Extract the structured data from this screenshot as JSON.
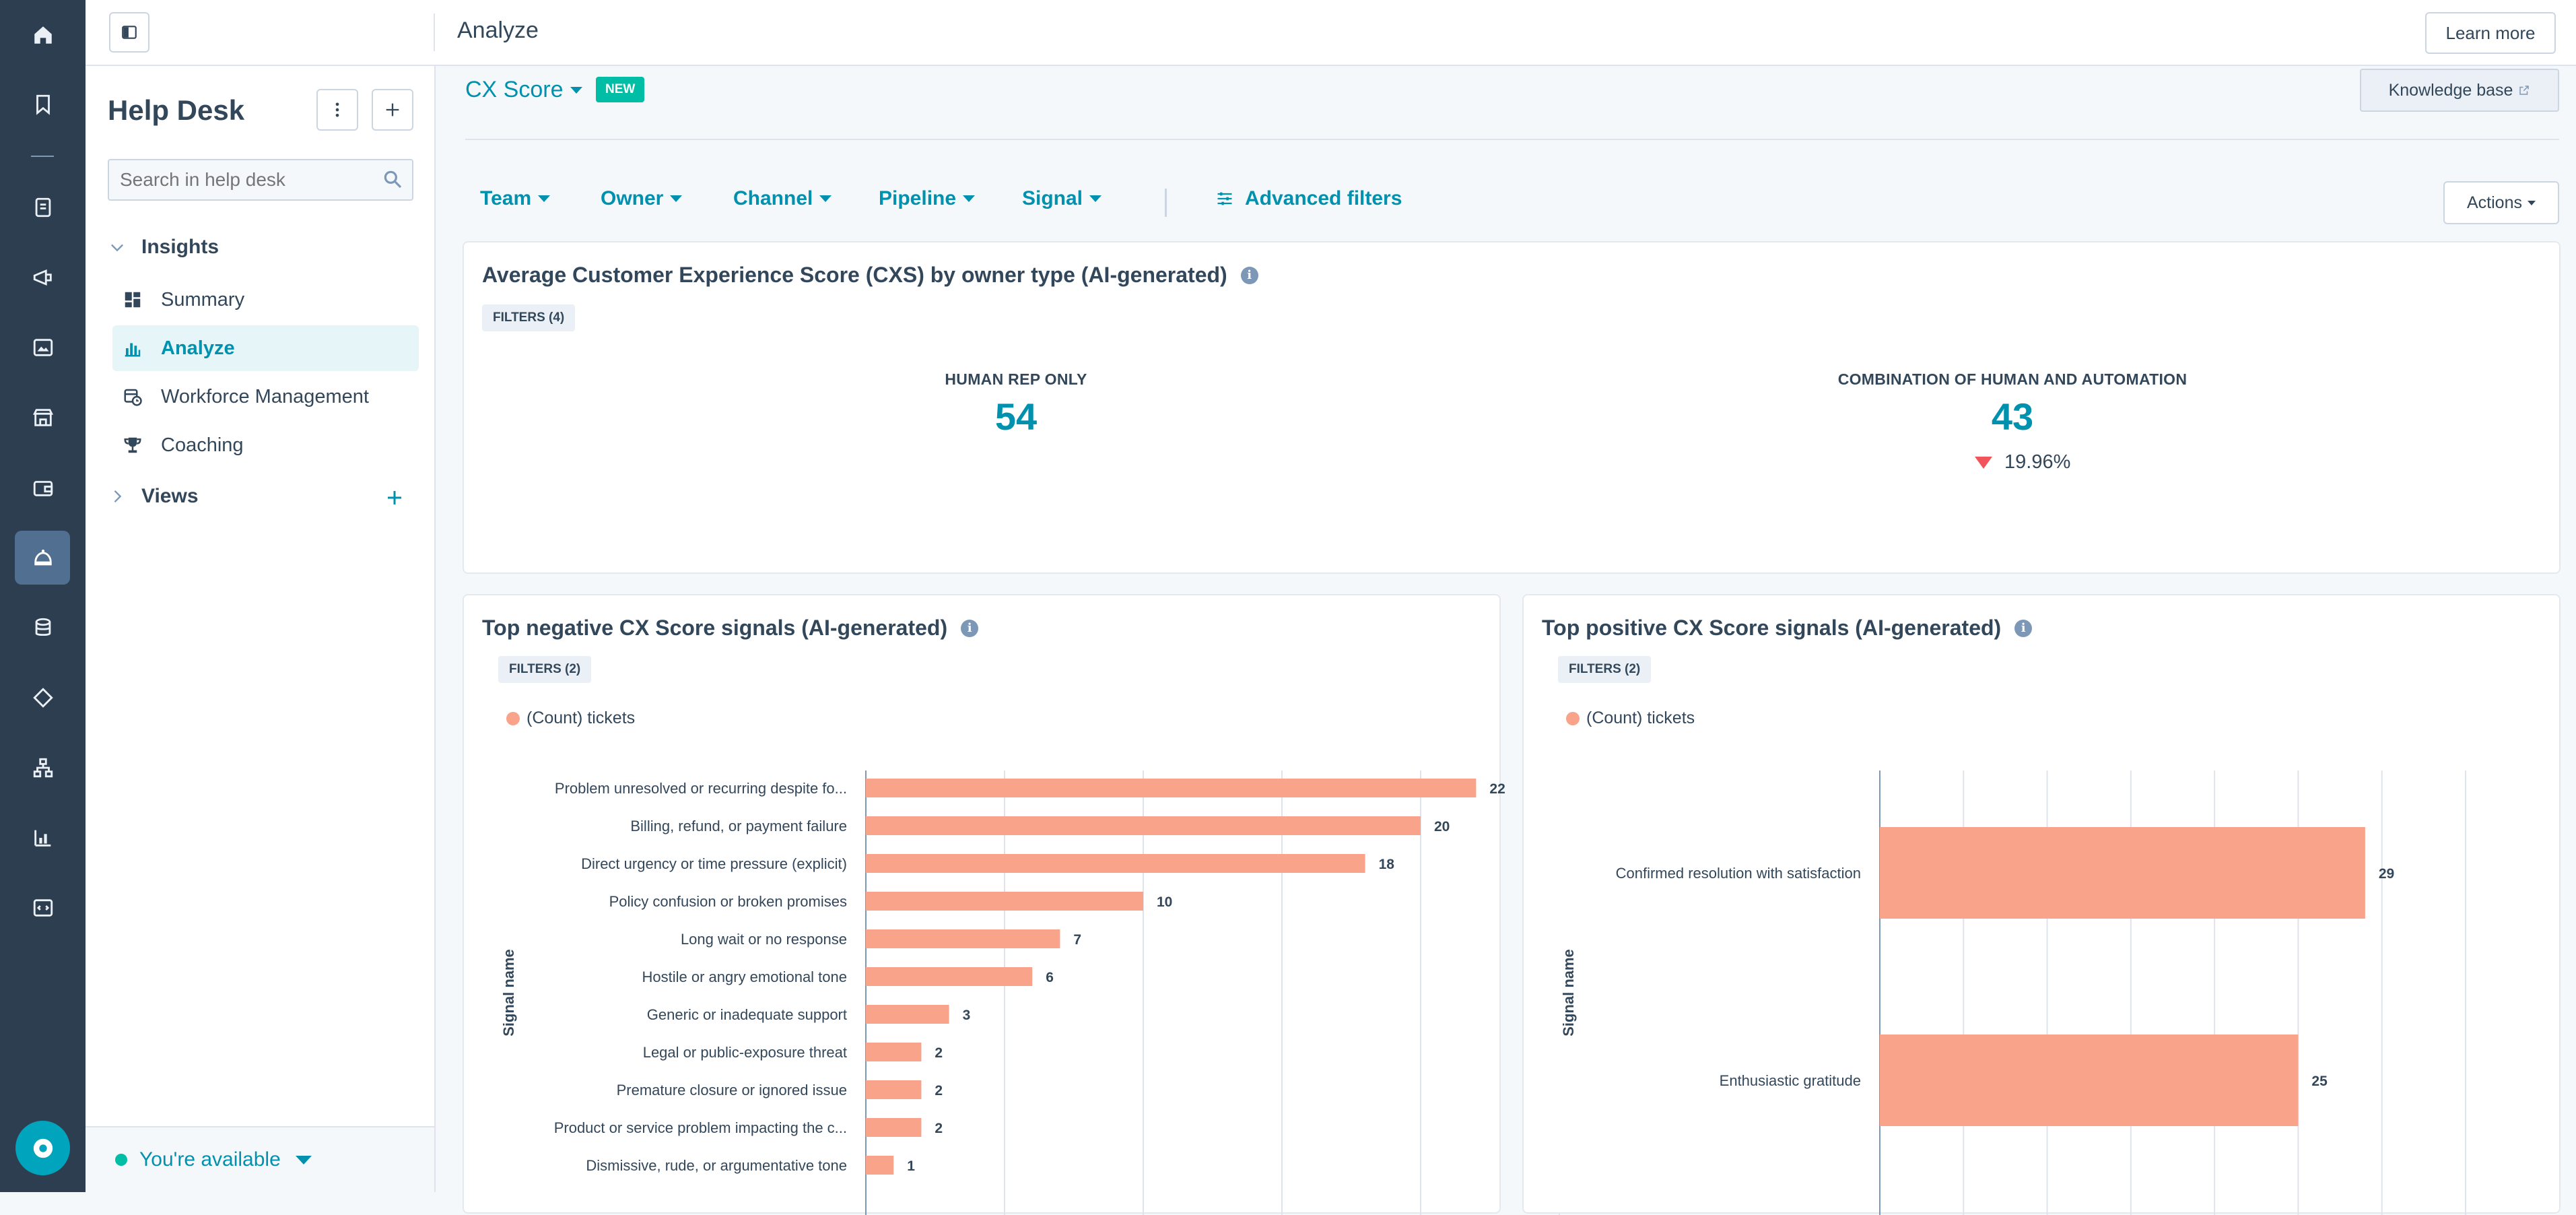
{
  "colors": {
    "rail_bg": "#2d3e50",
    "accent": "#0091ae",
    "bar": "#f8a38a",
    "negative": "#f2545b",
    "available": "#00bda5"
  },
  "rail": {
    "icons": [
      "home-icon",
      "bookmark-icon",
      "contacts-icon",
      "marketing-megaphone-icon",
      "content-icon",
      "commerce-icon",
      "payments-icon",
      "service-helpdesk-icon",
      "data-icon",
      "automation-icon",
      "workflows-icon",
      "reporting-icon",
      "development-icon"
    ],
    "help_icon": "help-icon"
  },
  "topbar": {
    "title": "Analyze",
    "learn_more": "Learn more"
  },
  "sidepanel": {
    "title": "Help Desk",
    "search_placeholder": "Search in help desk",
    "insights_label": "Insights",
    "items": [
      {
        "label": "Summary",
        "icon": "dashboard-icon"
      },
      {
        "label": "Analyze",
        "icon": "bar-chart-icon",
        "active": true
      },
      {
        "label": "Workforce Management",
        "icon": "calendar-clock-icon"
      },
      {
        "label": "Coaching",
        "icon": "trophy-icon"
      }
    ],
    "views_label": "Views",
    "status": "You're available"
  },
  "main": {
    "report_title": "CX Score",
    "new_badge": "NEW",
    "knowledge_base": "Knowledge base",
    "filters": [
      "Team",
      "Owner",
      "Channel",
      "Pipeline",
      "Signal"
    ],
    "advanced_filters": "Advanced filters",
    "actions": "Actions"
  },
  "kpi_card": {
    "title": "Average Customer Experience Score (CXS) by owner type (AI-generated)",
    "filters": "FILTERS (4)",
    "metrics": [
      {
        "label": "HUMAN REP ONLY",
        "value": "54"
      },
      {
        "label": "COMBINATION OF HUMAN AND AUTOMATION",
        "value": "43",
        "change": "19.96%",
        "direction": "down"
      }
    ]
  },
  "neg_card": {
    "title": "Top negative CX Score signals (AI-generated)",
    "filters": "FILTERS (2)",
    "legend": "(Count) tickets",
    "ylabel": "Signal name"
  },
  "pos_card": {
    "title": "Top positive CX Score signals (AI-generated)",
    "filters": "FILTERS (2)",
    "legend": "(Count) tickets",
    "ylabel": "Signal name"
  },
  "chart_data": [
    {
      "type": "bar",
      "orientation": "horizontal",
      "title": "Top negative CX Score signals (AI-generated)",
      "ylabel": "Signal name",
      "xlim": [
        0,
        25
      ],
      "grid": true,
      "legend": "top-left",
      "series": [
        {
          "name": "(Count) tickets",
          "values": [
            22,
            20,
            18,
            10,
            7,
            6,
            3,
            2,
            2,
            2,
            1
          ]
        }
      ],
      "categories": [
        "Problem unresolved or recurring despite fo...",
        "Billing, refund, or payment failure",
        "Direct urgency or time pressure (explicit)",
        "Policy confusion or broken promises",
        "Long wait or no response",
        "Hostile or angry emotional tone",
        "Generic or inadequate support",
        "Legal or public-exposure threat",
        "Premature closure or ignored issue",
        "Product or service problem impacting the c...",
        "Dismissive, rude, or argumentative tone"
      ]
    },
    {
      "type": "bar",
      "orientation": "horizontal",
      "title": "Top positive CX Score signals (AI-generated)",
      "ylabel": "Signal name",
      "xlim": [
        0,
        35
      ],
      "grid": true,
      "legend": "top-left",
      "series": [
        {
          "name": "(Count) tickets",
          "values": [
            29,
            25
          ]
        }
      ],
      "categories": [
        "Confirmed resolution with satisfaction",
        "Enthusiastic gratitude"
      ]
    }
  ]
}
